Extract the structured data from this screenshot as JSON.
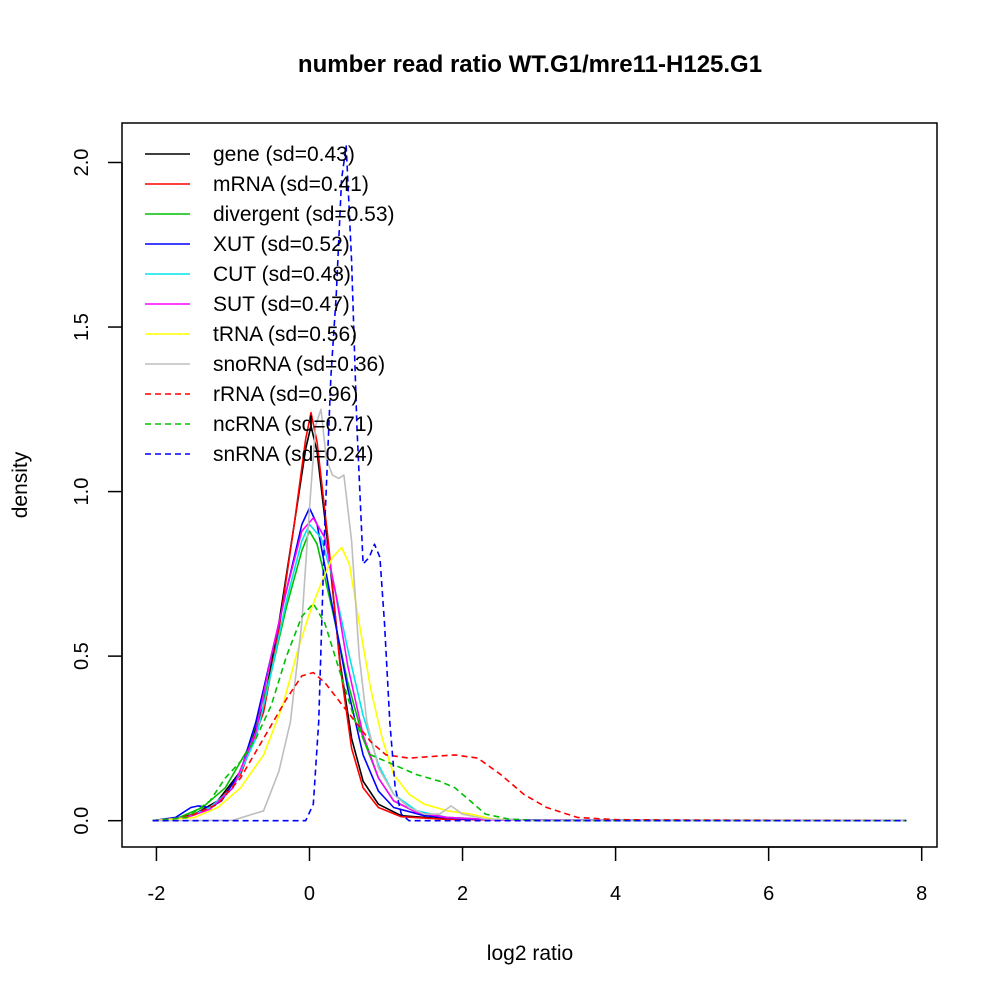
{
  "chart_data": {
    "type": "line",
    "title": "number read ratio WT.G1/mre11-H125.G1",
    "xlabel": "log2 ratio",
    "ylabel": "density",
    "xlim": [
      -2.45,
      8.2
    ],
    "ylim": [
      -0.08,
      2.12
    ],
    "xticks": [
      -2,
      0,
      2,
      4,
      6,
      8
    ],
    "yticks": [
      0.0,
      0.5,
      1.0,
      1.5,
      2.0
    ],
    "xtick_labels": [
      "-2",
      "0",
      "2",
      "4",
      "6",
      "8"
    ],
    "ytick_labels": [
      "0.0",
      "0.5",
      "1.0",
      "1.5",
      "2.0"
    ],
    "legend_position": "top-left",
    "series": [
      {
        "name": "gene (sd=0.43)",
        "color": "#000000",
        "dash": false,
        "points": [
          [
            -2.05,
            0
          ],
          [
            -1.8,
            0.005
          ],
          [
            -1.5,
            0.02
          ],
          [
            -1.2,
            0.06
          ],
          [
            -0.9,
            0.15
          ],
          [
            -0.6,
            0.35
          ],
          [
            -0.4,
            0.6
          ],
          [
            -0.2,
            0.9
          ],
          [
            -0.05,
            1.13
          ],
          [
            0.02,
            1.2
          ],
          [
            0.1,
            1.12
          ],
          [
            0.25,
            0.82
          ],
          [
            0.4,
            0.48
          ],
          [
            0.55,
            0.25
          ],
          [
            0.7,
            0.12
          ],
          [
            0.9,
            0.05
          ],
          [
            1.2,
            0.015
          ],
          [
            1.8,
            0.005
          ],
          [
            3,
            0.001
          ],
          [
            5,
            0
          ],
          [
            7.8,
            0
          ]
        ]
      },
      {
        "name": "mRNA (sd=0.41)",
        "color": "#ff0000",
        "dash": false,
        "points": [
          [
            -2.05,
            0
          ],
          [
            -1.8,
            0.004
          ],
          [
            -1.5,
            0.018
          ],
          [
            -1.2,
            0.055
          ],
          [
            -0.9,
            0.14
          ],
          [
            -0.6,
            0.33
          ],
          [
            -0.4,
            0.58
          ],
          [
            -0.2,
            0.9
          ],
          [
            -0.05,
            1.16
          ],
          [
            0.02,
            1.24
          ],
          [
            0.1,
            1.15
          ],
          [
            0.25,
            0.84
          ],
          [
            0.4,
            0.47
          ],
          [
            0.55,
            0.22
          ],
          [
            0.7,
            0.1
          ],
          [
            0.9,
            0.04
          ],
          [
            1.2,
            0.012
          ],
          [
            1.8,
            0.004
          ],
          [
            3,
            0.001
          ],
          [
            5,
            0
          ],
          [
            7.8,
            0
          ]
        ]
      },
      {
        "name": "divergent (sd=0.53)",
        "color": "#00c000",
        "dash": false,
        "points": [
          [
            -2.05,
            0
          ],
          [
            -1.7,
            0.01
          ],
          [
            -1.4,
            0.04
          ],
          [
            -1.1,
            0.1
          ],
          [
            -0.8,
            0.22
          ],
          [
            -0.5,
            0.45
          ],
          [
            -0.3,
            0.65
          ],
          [
            -0.1,
            0.82
          ],
          [
            0,
            0.88
          ],
          [
            0.1,
            0.84
          ],
          [
            0.3,
            0.64
          ],
          [
            0.5,
            0.42
          ],
          [
            0.7,
            0.25
          ],
          [
            0.9,
            0.13
          ],
          [
            1.1,
            0.06
          ],
          [
            1.4,
            0.025
          ],
          [
            1.8,
            0.01
          ],
          [
            2.5,
            0.002
          ],
          [
            4,
            0
          ],
          [
            7.8,
            0
          ]
        ]
      },
      {
        "name": "XUT (sd=0.52)",
        "color": "#0000ff",
        "dash": false,
        "points": [
          [
            -2.05,
            0
          ],
          [
            -1.75,
            0.01
          ],
          [
            -1.55,
            0.04
          ],
          [
            -1.45,
            0.045
          ],
          [
            -1.3,
            0.04
          ],
          [
            -1.15,
            0.06
          ],
          [
            -0.9,
            0.15
          ],
          [
            -0.7,
            0.3
          ],
          [
            -0.5,
            0.5
          ],
          [
            -0.3,
            0.7
          ],
          [
            -0.1,
            0.9
          ],
          [
            0,
            0.95
          ],
          [
            0.1,
            0.9
          ],
          [
            0.3,
            0.65
          ],
          [
            0.5,
            0.4
          ],
          [
            0.7,
            0.2
          ],
          [
            0.9,
            0.09
          ],
          [
            1.1,
            0.04
          ],
          [
            1.5,
            0.015
          ],
          [
            2,
            0.005
          ],
          [
            3,
            0.002
          ],
          [
            5,
            0.001
          ],
          [
            7.8,
            0
          ]
        ]
      },
      {
        "name": "CUT (sd=0.48)",
        "color": "#00e5ee",
        "dash": false,
        "points": [
          [
            -2.05,
            0
          ],
          [
            -1.6,
            0.01
          ],
          [
            -1.3,
            0.04
          ],
          [
            -1,
            0.1
          ],
          [
            -0.7,
            0.25
          ],
          [
            -0.5,
            0.45
          ],
          [
            -0.3,
            0.67
          ],
          [
            -0.1,
            0.85
          ],
          [
            0,
            0.9
          ],
          [
            0.15,
            0.86
          ],
          [
            0.3,
            0.74
          ],
          [
            0.5,
            0.52
          ],
          [
            0.7,
            0.32
          ],
          [
            0.9,
            0.17
          ],
          [
            1.1,
            0.08
          ],
          [
            1.4,
            0.03
          ],
          [
            1.8,
            0.01
          ],
          [
            2.5,
            0.002
          ],
          [
            4,
            0
          ],
          [
            7.8,
            0
          ]
        ]
      },
      {
        "name": "SUT (sd=0.47)",
        "color": "#ff00ff",
        "dash": false,
        "points": [
          [
            -2.05,
            0
          ],
          [
            -1.6,
            0.01
          ],
          [
            -1.3,
            0.035
          ],
          [
            -1,
            0.1
          ],
          [
            -0.7,
            0.27
          ],
          [
            -0.5,
            0.5
          ],
          [
            -0.3,
            0.7
          ],
          [
            -0.1,
            0.88
          ],
          [
            0.05,
            0.92
          ],
          [
            0.2,
            0.86
          ],
          [
            0.35,
            0.68
          ],
          [
            0.5,
            0.47
          ],
          [
            0.7,
            0.26
          ],
          [
            0.9,
            0.13
          ],
          [
            1.1,
            0.06
          ],
          [
            1.4,
            0.025
          ],
          [
            1.8,
            0.01
          ],
          [
            2.5,
            0.002
          ],
          [
            4,
            0
          ],
          [
            7.8,
            0
          ]
        ]
      },
      {
        "name": "tRNA (sd=0.56)",
        "color": "#ffff00",
        "dash": false,
        "points": [
          [
            -2.05,
            0
          ],
          [
            -1.5,
            0.01
          ],
          [
            -1.2,
            0.04
          ],
          [
            -0.9,
            0.1
          ],
          [
            -0.6,
            0.2
          ],
          [
            -0.35,
            0.35
          ],
          [
            -0.15,
            0.52
          ],
          [
            0,
            0.63
          ],
          [
            0.15,
            0.72
          ],
          [
            0.3,
            0.8
          ],
          [
            0.42,
            0.83
          ],
          [
            0.52,
            0.78
          ],
          [
            0.65,
            0.6
          ],
          [
            0.8,
            0.4
          ],
          [
            0.95,
            0.25
          ],
          [
            1.1,
            0.14
          ],
          [
            1.3,
            0.08
          ],
          [
            1.5,
            0.05
          ],
          [
            1.8,
            0.03
          ],
          [
            2.1,
            0.02
          ],
          [
            2.4,
            0.005
          ],
          [
            3,
            0
          ],
          [
            7.8,
            0
          ]
        ]
      },
      {
        "name": "snoRNA (sd=0.36)",
        "color": "#bebebe",
        "dash": false,
        "points": [
          [
            -2.05,
            0
          ],
          [
            -1,
            0.001
          ],
          [
            -0.6,
            0.03
          ],
          [
            -0.4,
            0.15
          ],
          [
            -0.25,
            0.3
          ],
          [
            -0.1,
            0.6
          ],
          [
            0,
            0.95
          ],
          [
            0.08,
            1.2
          ],
          [
            0.15,
            1.25
          ],
          [
            0.22,
            1.1
          ],
          [
            0.3,
            1.05
          ],
          [
            0.38,
            1.04
          ],
          [
            0.45,
            1.05
          ],
          [
            0.55,
            0.85
          ],
          [
            0.65,
            0.5
          ],
          [
            0.75,
            0.3
          ],
          [
            0.9,
            0.16
          ],
          [
            1.1,
            0.08
          ],
          [
            1.3,
            0.04
          ],
          [
            1.5,
            0.02
          ],
          [
            1.7,
            0.02
          ],
          [
            1.85,
            0.045
          ],
          [
            2,
            0.02
          ],
          [
            2.3,
            0.005
          ],
          [
            3,
            0
          ],
          [
            7.8,
            0
          ]
        ]
      },
      {
        "name": "rRNA (sd=0.96)",
        "color": "#ff0000",
        "dash": true,
        "points": [
          [
            -2.05,
            0
          ],
          [
            -1.6,
            0.01
          ],
          [
            -1.2,
            0.05
          ],
          [
            -0.9,
            0.13
          ],
          [
            -0.6,
            0.25
          ],
          [
            -0.3,
            0.37
          ],
          [
            -0.1,
            0.44
          ],
          [
            0.05,
            0.45
          ],
          [
            0.2,
            0.42
          ],
          [
            0.4,
            0.36
          ],
          [
            0.6,
            0.3
          ],
          [
            0.8,
            0.24
          ],
          [
            1,
            0.2
          ],
          [
            1.3,
            0.19
          ],
          [
            1.6,
            0.195
          ],
          [
            1.9,
            0.2
          ],
          [
            2.2,
            0.19
          ],
          [
            2.5,
            0.14
          ],
          [
            2.8,
            0.08
          ],
          [
            3.1,
            0.04
          ],
          [
            3.5,
            0.01
          ],
          [
            4,
            0.003
          ],
          [
            5,
            0.002
          ],
          [
            7.8,
            0
          ]
        ]
      },
      {
        "name": "ncRNA (sd=0.71)",
        "color": "#00c000",
        "dash": true,
        "points": [
          [
            -2.05,
            0
          ],
          [
            -1.6,
            0.01
          ],
          [
            -1.3,
            0.06
          ],
          [
            -1.1,
            0.13
          ],
          [
            -0.9,
            0.18
          ],
          [
            -0.7,
            0.25
          ],
          [
            -0.5,
            0.35
          ],
          [
            -0.3,
            0.5
          ],
          [
            -0.1,
            0.62
          ],
          [
            0.05,
            0.66
          ],
          [
            0.2,
            0.6
          ],
          [
            0.4,
            0.45
          ],
          [
            0.6,
            0.3
          ],
          [
            0.8,
            0.2
          ],
          [
            1.1,
            0.17
          ],
          [
            1.4,
            0.14
          ],
          [
            1.7,
            0.12
          ],
          [
            1.9,
            0.1
          ],
          [
            2.1,
            0.06
          ],
          [
            2.3,
            0.02
          ],
          [
            2.6,
            0.005
          ],
          [
            3,
            0
          ],
          [
            7.8,
            0
          ]
        ]
      },
      {
        "name": "snRNA (sd=0.24)",
        "color": "#0000ff",
        "dash": true,
        "points": [
          [
            -2.05,
            0
          ],
          [
            -0.05,
            0
          ],
          [
            0.05,
            0.05
          ],
          [
            0.12,
            0.3
          ],
          [
            0.2,
            0.9
          ],
          [
            0.28,
            1.35
          ],
          [
            0.35,
            1.6
          ],
          [
            0.42,
            1.95
          ],
          [
            0.48,
            2.05
          ],
          [
            0.55,
            1.7
          ],
          [
            0.62,
            1.2
          ],
          [
            0.7,
            0.78
          ],
          [
            0.78,
            0.8
          ],
          [
            0.85,
            0.84
          ],
          [
            0.92,
            0.8
          ],
          [
            0.98,
            0.6
          ],
          [
            1.05,
            0.3
          ],
          [
            1.12,
            0.1
          ],
          [
            1.2,
            0.02
          ],
          [
            1.3,
            0
          ],
          [
            7.8,
            0
          ]
        ]
      }
    ]
  }
}
